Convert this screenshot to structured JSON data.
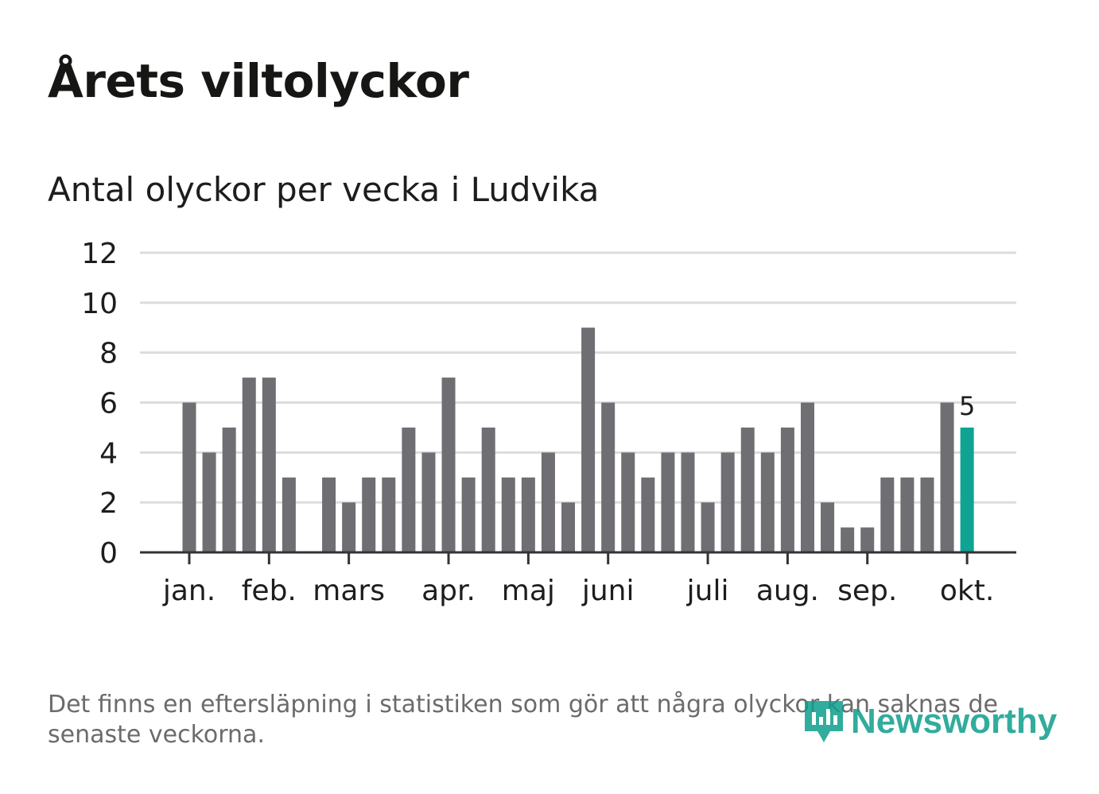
{
  "header": {
    "title": "Årets viltolyckor",
    "subtitle": "Antal olyckor per vecka i Ludvika"
  },
  "footer": {
    "note": "Det finns en eftersläpning i statistiken som gör att några olyckor kan saknas de senaste veckorna.",
    "logo_text": "Newsworthy"
  },
  "colors": {
    "bar": "#6f6e73",
    "highlight": "#0ea393",
    "grid": "#dcdcdc",
    "axis": "#333333",
    "text": "#1d1d1b"
  },
  "chart_data": {
    "type": "bar",
    "title": "Antal olyckor per vecka i Ludvika",
    "xlabel": "",
    "ylabel": "",
    "ylim": [
      0,
      12
    ],
    "yticks": [
      0,
      2,
      4,
      6,
      8,
      10,
      12
    ],
    "grid": true,
    "weeks": [
      1,
      2,
      3,
      4,
      5,
      6,
      7,
      8,
      9,
      10,
      11,
      12,
      13,
      14,
      15,
      16,
      17,
      18,
      19,
      20,
      21,
      22,
      23,
      24,
      25,
      26,
      27,
      28,
      29,
      30,
      31,
      32,
      33,
      34,
      35,
      36,
      37,
      38,
      39,
      40
    ],
    "values": [
      6,
      4,
      5,
      7,
      7,
      3,
      0,
      3,
      2,
      3,
      3,
      5,
      4,
      7,
      3,
      5,
      3,
      3,
      4,
      2,
      9,
      6,
      4,
      3,
      4,
      4,
      2,
      4,
      5,
      4,
      5,
      6,
      2,
      1,
      1,
      3,
      3,
      3,
      6,
      5
    ],
    "highlight_index": 39,
    "highlight_label": "5",
    "month_labels": [
      {
        "label": "jan.",
        "week": 1
      },
      {
        "label": "feb.",
        "week": 5
      },
      {
        "label": "mars",
        "week": 9
      },
      {
        "label": "apr.",
        "week": 14
      },
      {
        "label": "maj",
        "week": 18
      },
      {
        "label": "juni",
        "week": 22
      },
      {
        "label": "juli",
        "week": 27
      },
      {
        "label": "aug.",
        "week": 31
      },
      {
        "label": "sep.",
        "week": 35
      },
      {
        "label": "okt.",
        "week": 40
      }
    ]
  }
}
